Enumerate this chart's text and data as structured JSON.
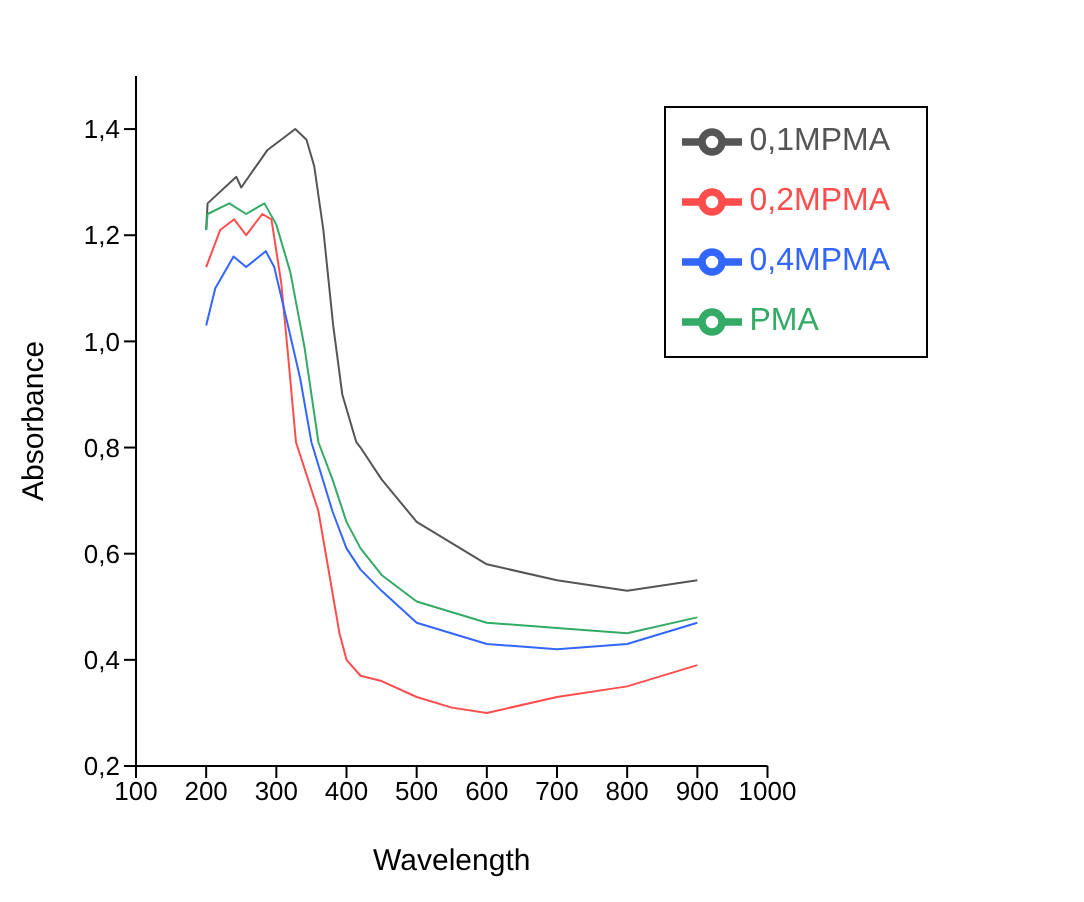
{
  "chart_data": {
    "type": "line",
    "xlabel": "Wavelength",
    "ylabel": "Absorbance",
    "xlim": [
      100,
      1000
    ],
    "xticks": [
      100,
      200,
      300,
      400,
      500,
      600,
      700,
      800,
      900,
      1000
    ],
    "ylim": [
      0.2,
      1.5
    ],
    "yticks": [
      {
        "value": 0.2,
        "label": "0,2"
      },
      {
        "value": 0.4,
        "label": "0,4"
      },
      {
        "value": 0.6,
        "label": "0,6"
      },
      {
        "value": 0.8,
        "label": "0,8"
      },
      {
        "value": 1.0,
        "label": "1,0"
      },
      {
        "value": 1.2,
        "label": "1,2"
      },
      {
        "value": 1.4,
        "label": "1,4"
      }
    ],
    "legend": "top right",
    "grid": false,
    "marker": "none",
    "line_style": "solid",
    "series": [
      {
        "name": "0,1MPMA",
        "color": "#555555",
        "x": [
          200,
          202,
          243,
          250,
          287,
          327,
          343,
          354,
          367,
          381,
          394,
          414,
          420,
          450,
          500,
          600,
          700,
          800,
          900
        ],
        "values": [
          1.21,
          1.26,
          1.31,
          1.29,
          1.36,
          1.4,
          1.38,
          1.33,
          1.21,
          1.03,
          0.9,
          0.81,
          0.8,
          0.74,
          0.66,
          0.58,
          0.55,
          0.53,
          0.55
        ]
      },
      {
        "name": "0,2MPMA",
        "color": "#ff4d4d",
        "x": [
          200,
          220,
          240,
          257,
          280,
          293,
          307,
          317,
          328,
          360,
          390,
          400,
          420,
          450,
          500,
          550,
          600,
          700,
          800,
          900
        ],
        "values": [
          1.14,
          1.21,
          1.23,
          1.2,
          1.24,
          1.23,
          1.11,
          0.97,
          0.81,
          0.68,
          0.45,
          0.4,
          0.37,
          0.36,
          0.33,
          0.31,
          0.3,
          0.33,
          0.35,
          0.39
        ]
      },
      {
        "name": "0,4MPMA",
        "color": "#3366ff",
        "x": [
          200,
          213,
          239,
          257,
          285,
          297,
          313,
          334,
          350,
          380,
          400,
          420,
          450,
          500,
          600,
          700,
          800,
          900
        ],
        "values": [
          1.03,
          1.1,
          1.16,
          1.14,
          1.17,
          1.14,
          1.05,
          0.93,
          0.81,
          0.68,
          0.61,
          0.57,
          0.53,
          0.47,
          0.43,
          0.42,
          0.43,
          0.47
        ]
      },
      {
        "name": "PMA",
        "color": "#33aa66",
        "x": [
          200,
          202,
          233,
          257,
          283,
          300,
          320,
          340,
          360,
          380,
          400,
          420,
          450,
          500,
          600,
          700,
          800,
          900
        ],
        "values": [
          1.21,
          1.24,
          1.26,
          1.24,
          1.26,
          1.22,
          1.13,
          0.99,
          0.81,
          0.74,
          0.66,
          0.61,
          0.56,
          0.51,
          0.47,
          0.46,
          0.45,
          0.48
        ]
      }
    ]
  }
}
